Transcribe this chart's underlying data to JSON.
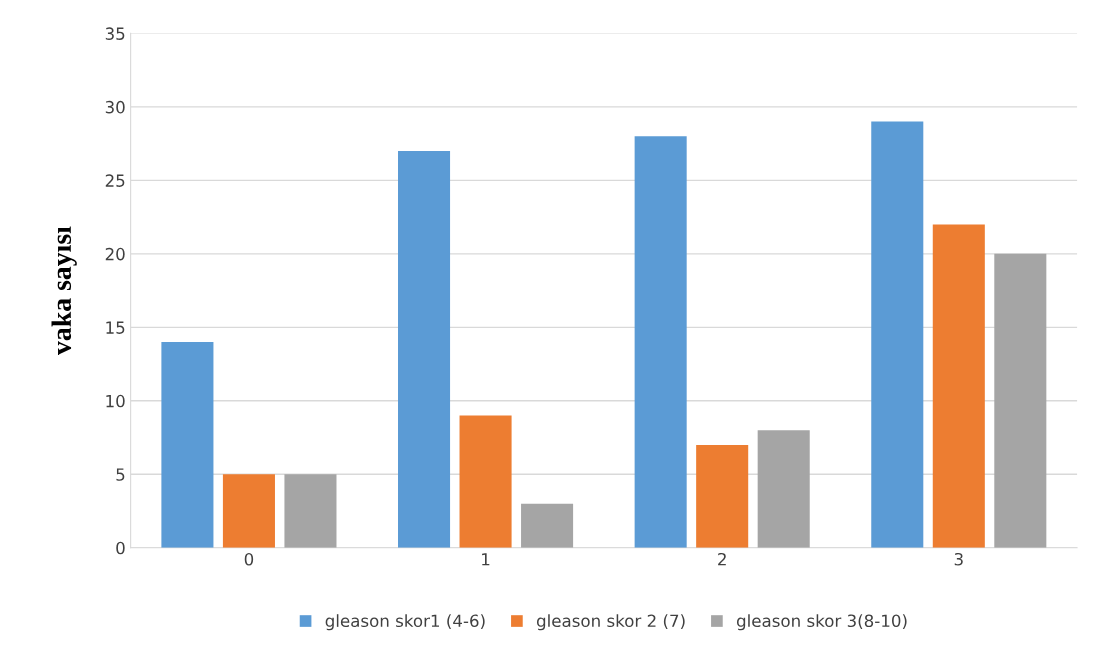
{
  "chart_data": {
    "type": "bar",
    "ylabel": "vaka sayısı",
    "categories": [
      "0",
      "1",
      "2",
      "3"
    ],
    "series": [
      {
        "name": "gleason skor1 (4-6)",
        "color": "#5b9bd5",
        "values": [
          14,
          27,
          28,
          29
        ]
      },
      {
        "name": "gleason skor 2 (7)",
        "color": "#ed7d31",
        "values": [
          5,
          9,
          7,
          22
        ]
      },
      {
        "name": "gleason skor 3(8-10)",
        "color": "#a5a5a5",
        "values": [
          5,
          3,
          8,
          20
        ]
      }
    ],
    "ylim": [
      0,
      35
    ],
    "yticks": [
      0,
      5,
      10,
      15,
      20,
      25,
      30,
      35
    ],
    "grid": "y",
    "legend": "bottom"
  }
}
